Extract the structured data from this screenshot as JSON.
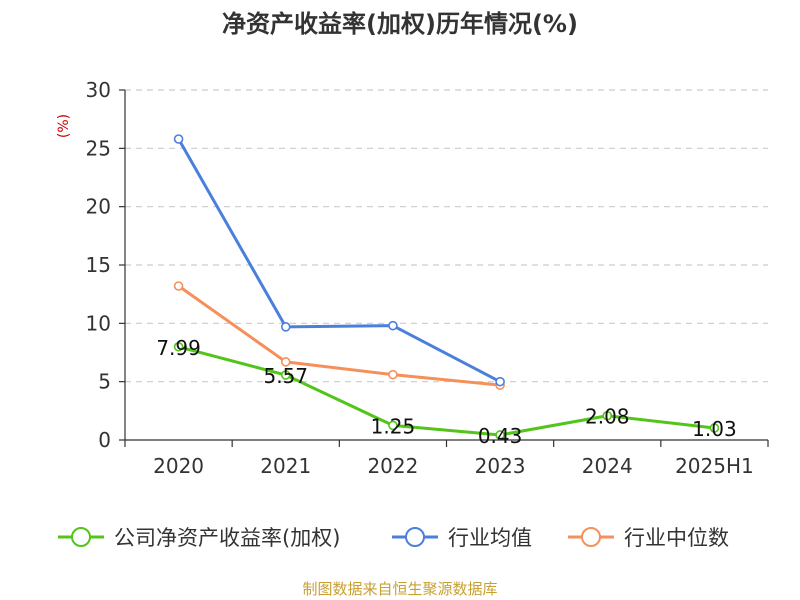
{
  "chart_data": {
    "type": "line",
    "title": "净资产收益率(加权)历年情况(%)",
    "ylabel": "(%)",
    "categories": [
      "2020",
      "2021",
      "2022",
      "2023",
      "2024",
      "2025H1"
    ],
    "yticks": [
      "0",
      "5",
      "10",
      "15",
      "20",
      "25",
      "30"
    ],
    "ylim": [
      0,
      30
    ],
    "grid": true,
    "legend_position": "bottom",
    "series": [
      {
        "name": "公司净资产收益率(加权)",
        "color": "#52c41a",
        "values": [
          7.99,
          5.57,
          1.25,
          0.43,
          2.08,
          1.03
        ],
        "labels": [
          "7.99",
          "5.57",
          "1.25",
          "0.43",
          "2.08",
          "1.03"
        ]
      },
      {
        "name": "行业均值",
        "color": "#4a7fdc",
        "values": [
          25.8,
          9.7,
          9.8,
          5.0,
          null,
          null
        ]
      },
      {
        "name": "行业中位数",
        "color": "#f5905a",
        "values": [
          13.2,
          6.7,
          5.6,
          4.7,
          null,
          null
        ]
      }
    ]
  },
  "source": "制图数据来自恒生聚源数据库"
}
